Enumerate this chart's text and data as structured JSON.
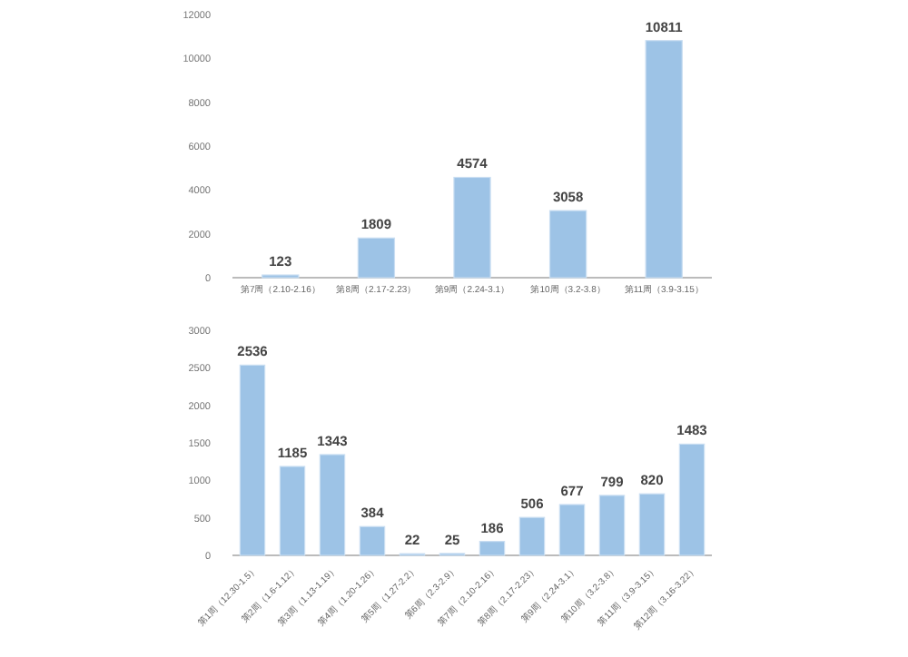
{
  "chart_data": [
    {
      "type": "bar",
      "categories": [
        "第7周（2.10-2.16）",
        "第8周（2.17-2.23）",
        "第9周（2.24-3.1）",
        "第10周（3.2-3.8）",
        "第11周（3.9-3.15）"
      ],
      "values": [
        123,
        1809,
        4574,
        3058,
        10811
      ],
      "color": "#9dc3e6",
      "ylim": [
        0,
        12000
      ],
      "yticks": [
        0,
        2000,
        4000,
        6000,
        8000,
        10000,
        12000
      ],
      "data_labels": true,
      "grid": false
    },
    {
      "type": "bar",
      "categories": [
        "第1周（12.30-1.5）",
        "第2周（1.6-1.12）",
        "第3周（1.13-1.19）",
        "第4周（1.20-1.26）",
        "第5周（1.27-2.2）",
        "第6周（2.3-2.9）",
        "第7周（2.10-2.16）",
        "第8周（2.17-2.23）",
        "第9周（2.24-3.1）",
        "第10周（3.2-3.8）",
        "第11周（3.9-3.15）",
        "第12周（3.16-3.22）"
      ],
      "values": [
        2536,
        1185,
        1343,
        384,
        22,
        25,
        186,
        506,
        677,
        799,
        820,
        1483
      ],
      "color": "#9dc3e6",
      "ylim": [
        0,
        3000
      ],
      "yticks": [
        0,
        500,
        1000,
        1500,
        2000,
        2500,
        3000
      ],
      "data_labels": true,
      "grid": false
    }
  ]
}
